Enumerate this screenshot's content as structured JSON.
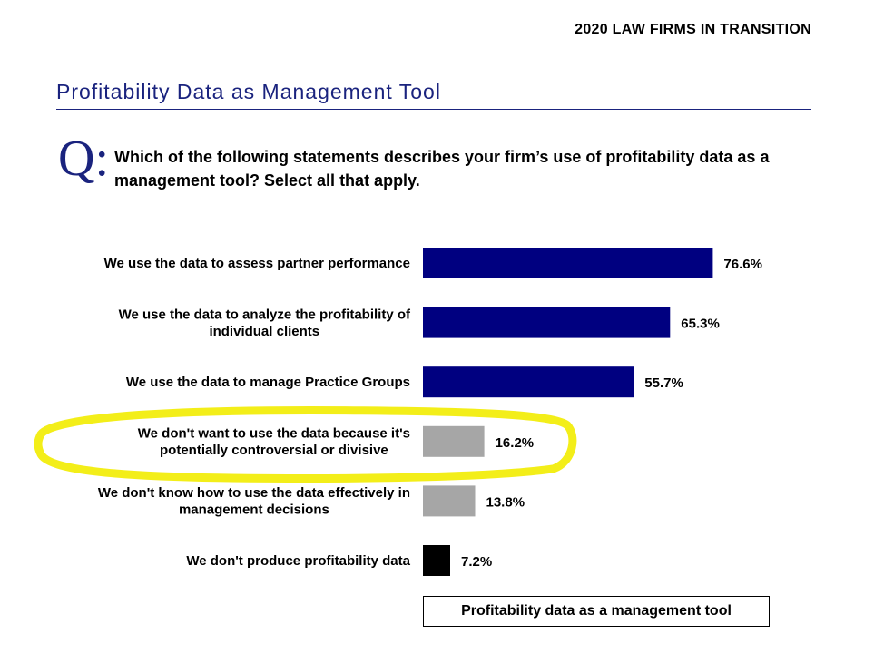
{
  "header": {
    "report_title": "2020 LAW FIRMS IN TRANSITION",
    "section_title": "Profitability Data as Management Tool"
  },
  "question": {
    "marker": "Q:",
    "text": "Which of the following statements describes your firm’s use of profitability data as a management tool? Select all that apply."
  },
  "chart_data": {
    "type": "bar",
    "orientation": "horizontal",
    "title": "Profitability data as a management tool",
    "categories": [
      [
        "We use the data to assess partner performance"
      ],
      [
        "We use the data to analyze the profitability of",
        "individual clients"
      ],
      [
        "We use the data to manage Practice Groups"
      ],
      [
        "We don't want to use the data because it's",
        "potentially controversial or divisive"
      ],
      [
        "We don't know how to use the data effectively in",
        "management decisions"
      ],
      [
        "We don't produce profitability data"
      ]
    ],
    "values": [
      76.6,
      65.3,
      55.7,
      16.2,
      13.8,
      7.2
    ],
    "value_labels": [
      "76.6%",
      "65.3%",
      "55.7%",
      "16.2%",
      "13.8%",
      "7.2%"
    ],
    "bar_colors": [
      "#000080",
      "#000080",
      "#000080",
      "#a6a6a6",
      "#a6a6a6",
      "#000000"
    ],
    "highlighted_index": 3,
    "highlight_color": "#f2ec00",
    "xlim": [
      0,
      100
    ],
    "legend": "Profitability data as a management tool"
  }
}
